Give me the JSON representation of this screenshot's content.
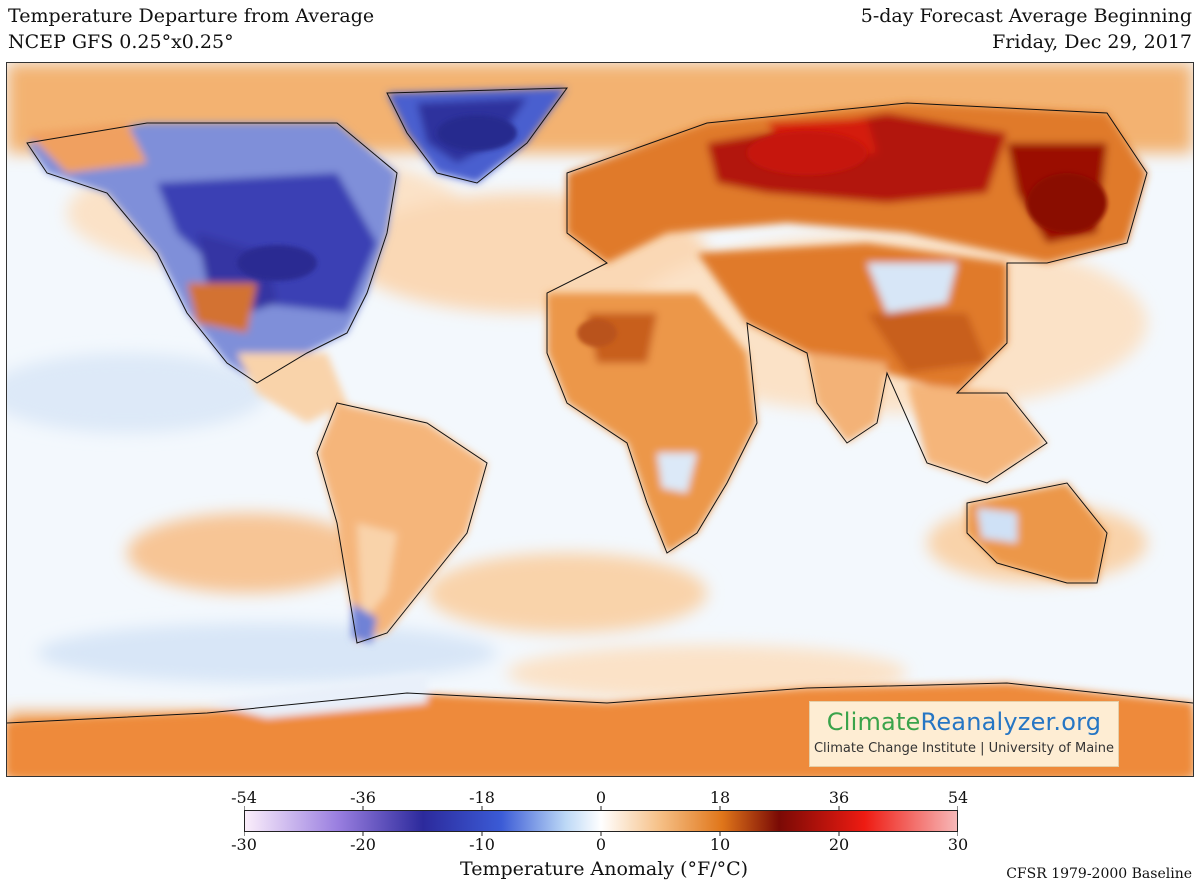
{
  "header": {
    "title": "Temperature Departure from Average",
    "model": "NCEP GFS 0.25°x0.25°",
    "forecast_label": "5-day Forecast Average Beginning",
    "forecast_date": "Friday, Dec 29, 2017"
  },
  "logo": {
    "name_part1": "Climate",
    "name_part2": "Reanalyzer.org",
    "subtitle": "Climate Change Institute | University of Maine"
  },
  "colorbar": {
    "title": "Temperature Anomaly (°F/°C)",
    "fahrenheit_ticks": [
      "-54",
      "-36",
      "-18",
      "0",
      "18",
      "36",
      "54"
    ],
    "celsius_ticks": [
      "-30",
      "-20",
      "-10",
      "0",
      "10",
      "20",
      "30"
    ],
    "colors": {
      "c_min": "#fbeefb",
      "c_purple": "#9a7fe0",
      "c_deep_blue": "#2c2a9c",
      "c_blue": "#3b5bd6",
      "c_light_blue": "#bcd8f6",
      "c_zero": "#ffffff",
      "c_light_orange": "#f6c28a",
      "c_orange": "#e0761a",
      "c_dark_red": "#7a0a05",
      "c_red": "#ee1b12",
      "c_pink": "#f7b8b8"
    }
  },
  "baseline": "CFSR 1979-2000 Baseline"
}
